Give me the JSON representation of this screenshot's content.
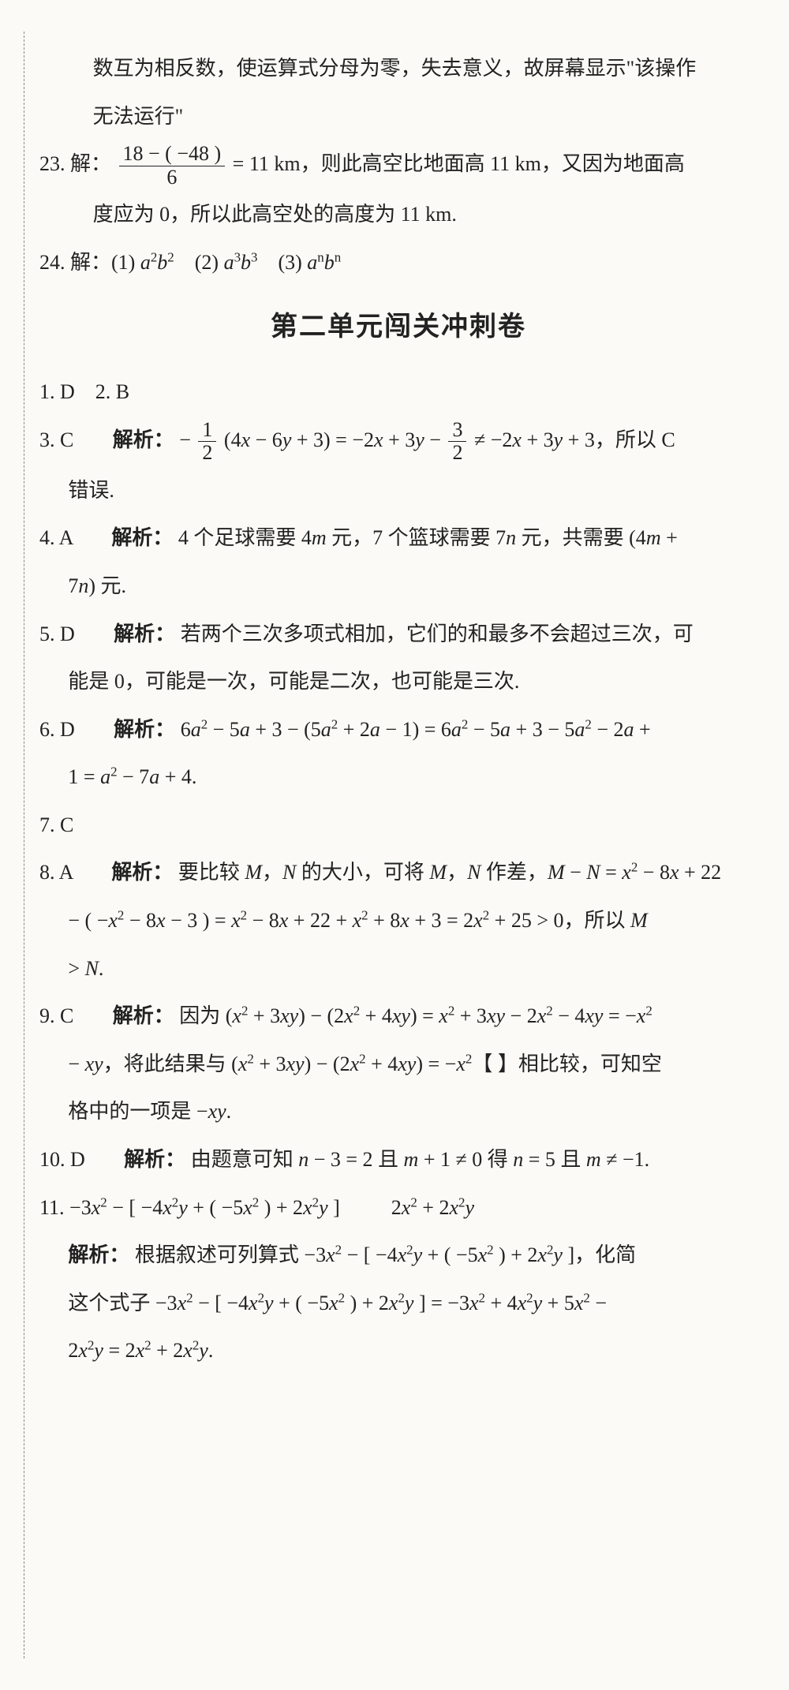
{
  "pre": {
    "l1": "数互为相反数，使运算式分母为零，失去意义，故屏幕显示\"该操作",
    "l2": "无法运行\""
  },
  "q23": {
    "num": "23.",
    "jie": "解：",
    "frac_top": "18 − ( −48 )",
    "frac_bot": "6",
    "rest1": " = 11 km，则此高空比地面高 11 km，又因为地面高",
    "l2": "度应为 0，所以此高空处的高度为 11 km."
  },
  "q24": {
    "num": "24.",
    "text": "解：(1) a²b²　(2) a³b³　(3) aⁿbⁿ"
  },
  "section": "第二单元闯关冲刺卷",
  "q1_2": "1. D　2. B",
  "q3": {
    "num": "3. C",
    "jiexi": "解析：",
    "l1a": "− ",
    "frac1_top": "1",
    "frac1_bot": "2",
    "l1b": "(4x − 6y + 3) = −2x + 3y − ",
    "frac2_top": "3",
    "frac2_bot": "2",
    "l1c": " ≠ −2x + 3y + 3，所以 C",
    "l2": "错误."
  },
  "q4": {
    "num": "4. A",
    "jiexi": "解析：",
    "l1": "4 个足球需要 4m 元，7 个篮球需要 7n 元，共需要 (4m +",
    "l2": "7n) 元."
  },
  "q5": {
    "num": "5. D",
    "jiexi": "解析：",
    "l1": "若两个三次多项式相加，它们的和最多不会超过三次，可",
    "l2": "能是 0，可能是一次，可能是二次，也可能是三次."
  },
  "q6": {
    "num": "6. D",
    "jiexi": "解析：",
    "l1": "6a² − 5a + 3 − (5a² + 2a − 1) = 6a² − 5a + 3 − 5a² − 2a +",
    "l2": "1 = a² − 7a + 4."
  },
  "q7": "7. C",
  "q8": {
    "num": "8. A",
    "jiexi": "解析：",
    "l1": "要比较 M，N 的大小，可将 M，N 作差，M − N = x² − 8x + 22",
    "l2": "− ( −x² − 8x − 3 ) = x² − 8x + 22 + x² + 8x + 3 = 2x² + 25 > 0，所以 M",
    "l3": "> N."
  },
  "q9": {
    "num": "9. C",
    "jiexi": "解析：",
    "l1": "因为 (x² + 3xy) − (2x² + 4xy) = x² + 3xy − 2x² − 4xy = −x²",
    "l2": "− xy，将此结果与 (x² + 3xy) − (2x² + 4xy) = −x²【 】相比较，可知空",
    "l3": "格中的一项是 −xy."
  },
  "q10": {
    "num": "10. D",
    "jiexi": "解析：",
    "l1": "由题意可知 n − 3 = 2 且 m + 1 ≠ 0 得 n = 5 且 m ≠ −1."
  },
  "q11": {
    "num": "11.",
    "l1a": "−3x² − [ −4x²y + ( −5x² ) + 2x²y ]",
    "l1b": "2x² + 2x²y",
    "jiexi": "解析：",
    "l2": "根据叙述可列算式 −3x² − [ −4x²y + ( −5x² ) + 2x²y ]，化简",
    "l3": "这个式子 −3x² − [ −4x²y + ( −5x² ) + 2x²y ] = −3x² + 4x²y + 5x² −",
    "l4": "2x²y = 2x² + 2x²y."
  }
}
